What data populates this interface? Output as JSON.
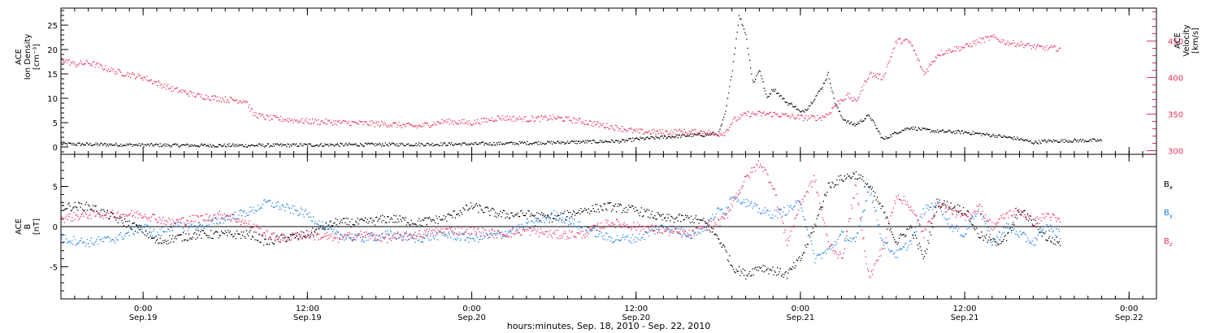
{
  "time_axis": {
    "range_hours": [
      -6.0,
      74.0
    ],
    "major_ticks": [
      {
        "t": 0,
        "time": "0:00",
        "date": "Sep.19"
      },
      {
        "t": 12,
        "time": "12:00",
        "date": "Sep.19"
      },
      {
        "t": 24,
        "time": "0:00",
        "date": "Sep.20"
      },
      {
        "t": 36,
        "time": "12:00",
        "date": "Sep.20"
      },
      {
        "t": 48,
        "time": "0:00",
        "date": "Sep.21"
      },
      {
        "t": 60,
        "time": "12:00",
        "date": "Sep.21"
      },
      {
        "t": 72,
        "time": "0:00",
        "date": "Sep.22"
      }
    ],
    "minor_step_hours": 1,
    "xlabel": "hours:minutes, Sep. 18, 2010 - Sep. 22, 2010"
  },
  "colors": {
    "black": "#000000",
    "pink": "#e8305e",
    "blue": "#1f7fe0"
  },
  "chart_data": [
    {
      "type": "scatter",
      "panel": "top",
      "left_axis": {
        "label_lines": [
          "ACE",
          "Ion Density",
          "[cm⁻³]"
        ],
        "ylim": [
          -1.5,
          28.5
        ],
        "ticks": [
          0,
          5,
          10,
          15,
          20,
          25
        ],
        "minor_step": 1
      },
      "right_axis": {
        "label_lines": [
          "ACE",
          "Velocity",
          "[km/s]"
        ],
        "ylim": [
          295,
          495
        ],
        "ticks": [
          300,
          350,
          400,
          450
        ],
        "minor_step": 10
      },
      "series": [
        {
          "axis": "left",
          "color": "black",
          "x": [
            -6,
            -3,
            0,
            4,
            8,
            12,
            18,
            24,
            30,
            35,
            36,
            38,
            40,
            41,
            42,
            42.5,
            43,
            43.5,
            44,
            44.5,
            45,
            45.5,
            46,
            47,
            47.5,
            48,
            48.5,
            49,
            49.5,
            50,
            50.5,
            51,
            51.5,
            52,
            53,
            54,
            55,
            56,
            57,
            58,
            60,
            62,
            64,
            65,
            66,
            68,
            70
          ],
          "y": [
            0.6,
            0.5,
            0.4,
            0.3,
            0.3,
            0.4,
            0.5,
            0.6,
            0.9,
            1.2,
            1.6,
            2.0,
            2.4,
            2.5,
            2.7,
            7.0,
            16.0,
            27.0,
            23.0,
            13.0,
            16.0,
            10.0,
            12.0,
            9.0,
            8.5,
            7.0,
            8.0,
            10.0,
            12.0,
            15.0,
            9.0,
            6.0,
            5.0,
            4.5,
            6.5,
            1.5,
            3.0,
            4.0,
            3.5,
            3.2,
            3.0,
            2.4,
            1.6,
            0.9,
            1.2,
            1.3,
            1.3
          ]
        },
        {
          "axis": "right",
          "color": "pink",
          "x": [
            -6,
            -5,
            -4,
            -2,
            0,
            2,
            4,
            6,
            7.5,
            8,
            9,
            12,
            15,
            18,
            20,
            22,
            24,
            26,
            28,
            30,
            32,
            34,
            35,
            36,
            38,
            39,
            40,
            41,
            41.8,
            42.5,
            43,
            44,
            46,
            48,
            49.5,
            50,
            50.5,
            51,
            51.5,
            52,
            53,
            54,
            55,
            55.5,
            56,
            57,
            58,
            59,
            60,
            61,
            62,
            63,
            64,
            65,
            66,
            67
          ],
          "y": [
            425,
            418,
            420,
            408,
            400,
            385,
            375,
            370,
            368,
            350,
            345,
            340,
            338,
            336,
            333,
            340,
            338,
            345,
            343,
            345,
            340,
            333,
            330,
            326,
            325,
            326,
            325,
            326,
            322,
            325,
            340,
            350,
            350,
            345,
            345,
            350,
            362,
            370,
            375,
            366,
            405,
            400,
            450,
            450,
            448,
            405,
            432,
            438,
            442,
            450,
            455,
            448,
            446,
            442,
            440,
            440
          ]
        }
      ]
    },
    {
      "type": "scatter",
      "panel": "bottom",
      "left_axis": {
        "label_lines": [
          "ACE",
          "B",
          "[nT]"
        ],
        "ylim": [
          -9,
          9
        ],
        "ticks": [
          -5,
          0,
          5
        ],
        "minor_step": 1
      },
      "legend": [
        {
          "text": "B",
          "sub": "x",
          "color": "black"
        },
        {
          "text": "B",
          "sub": "y",
          "color": "blue"
        },
        {
          "text": "B",
          "sub": "z",
          "color": "pink"
        }
      ],
      "series": [
        {
          "name": "Bx",
          "color": "black",
          "x": [
            -6,
            -4,
            -2,
            0,
            1,
            2,
            4,
            6,
            8,
            9,
            10,
            12,
            14,
            16,
            18,
            20,
            22,
            24,
            26,
            28,
            30,
            32,
            34,
            36,
            38,
            40,
            41,
            42,
            42.5,
            43,
            44,
            45,
            46,
            47,
            48,
            49,
            50,
            51,
            52,
            53,
            54,
            55,
            56,
            57,
            58,
            59,
            60,
            61,
            62,
            63,
            64,
            65,
            66,
            67
          ],
          "y": [
            2.5,
            2.5,
            1.0,
            -0.5,
            -2.0,
            -1.5,
            -1.0,
            -1.0,
            -1.0,
            -2.0,
            -1.5,
            -1.0,
            0.5,
            0.5,
            1.0,
            0.5,
            1.0,
            2.5,
            1.5,
            1.5,
            1.0,
            2.0,
            2.5,
            2.0,
            1.0,
            1.0,
            0.5,
            -1.5,
            -3.0,
            -5.0,
            -6.0,
            -5.0,
            -5.5,
            -6.0,
            -4.0,
            0.0,
            5.0,
            6.0,
            6.5,
            5.0,
            2.0,
            -2.0,
            0.0,
            -4.0,
            3.0,
            2.5,
            2.0,
            -1.0,
            -2.0,
            -1.5,
            2.0,
            0.5,
            -1.5,
            -2.0
          ]
        },
        {
          "name": "By",
          "color": "blue",
          "x": [
            -6,
            -4,
            -2,
            0,
            1,
            2,
            4,
            6,
            8,
            9,
            10,
            12,
            14,
            16,
            18,
            20,
            22,
            24,
            26,
            28,
            30,
            32,
            34,
            36,
            38,
            40,
            41,
            42,
            42.5,
            43,
            44,
            45,
            46,
            47,
            48,
            49,
            50,
            51,
            52,
            53,
            54,
            55,
            56,
            57,
            58,
            59,
            60,
            61,
            62,
            63,
            64,
            65,
            66,
            67
          ],
          "y": [
            -1.5,
            -2.0,
            -1.5,
            0.0,
            -1.0,
            0.0,
            0.0,
            1.0,
            2.0,
            3.0,
            2.5,
            1.5,
            -1.0,
            -1.5,
            -1.0,
            -1.5,
            -1.0,
            -1.5,
            -1.0,
            0.0,
            1.5,
            0.0,
            -1.5,
            -1.5,
            0.0,
            -1.0,
            0.0,
            2.0,
            2.0,
            4.0,
            3.0,
            2.0,
            1.5,
            2.0,
            3.0,
            -4.0,
            -3.0,
            -1.0,
            -2.0,
            5.0,
            -2.0,
            -3.5,
            -2.0,
            2.0,
            3.0,
            0.0,
            -1.0,
            2.5,
            -2.0,
            0.0,
            -1.0,
            -2.0,
            0.0,
            -1.0
          ]
        },
        {
          "name": "Bz",
          "color": "pink",
          "x": [
            -6,
            -4,
            -2,
            0,
            1,
            2,
            4,
            6,
            8,
            9,
            10,
            12,
            14,
            16,
            18,
            20,
            22,
            24,
            26,
            28,
            30,
            32,
            34,
            36,
            38,
            40,
            41,
            42,
            42.5,
            43,
            44,
            45,
            46,
            47,
            48,
            49,
            50,
            51,
            52,
            53,
            54,
            55,
            56,
            57,
            58,
            59,
            60,
            61,
            62,
            63,
            64,
            65,
            66,
            67
          ],
          "y": [
            1.0,
            1.5,
            1.5,
            1.5,
            1.0,
            0.5,
            1.0,
            1.5,
            0.0,
            -1.0,
            -1.5,
            -1.0,
            -1.5,
            -1.0,
            -1.5,
            -1.0,
            -0.5,
            -0.5,
            -1.0,
            -0.5,
            -1.0,
            -1.0,
            0.5,
            0.0,
            -0.5,
            -1.0,
            0.0,
            0.5,
            1.0,
            3.0,
            6.0,
            8.0,
            5.0,
            -2.0,
            3.0,
            6.0,
            -2.0,
            -4.0,
            5.0,
            -6.5,
            -2.5,
            4.0,
            2.5,
            -1.0,
            3.0,
            2.0,
            1.0,
            2.5,
            0.0,
            1.5,
            2.0,
            0.5,
            1.5,
            0.5
          ]
        }
      ]
    }
  ]
}
